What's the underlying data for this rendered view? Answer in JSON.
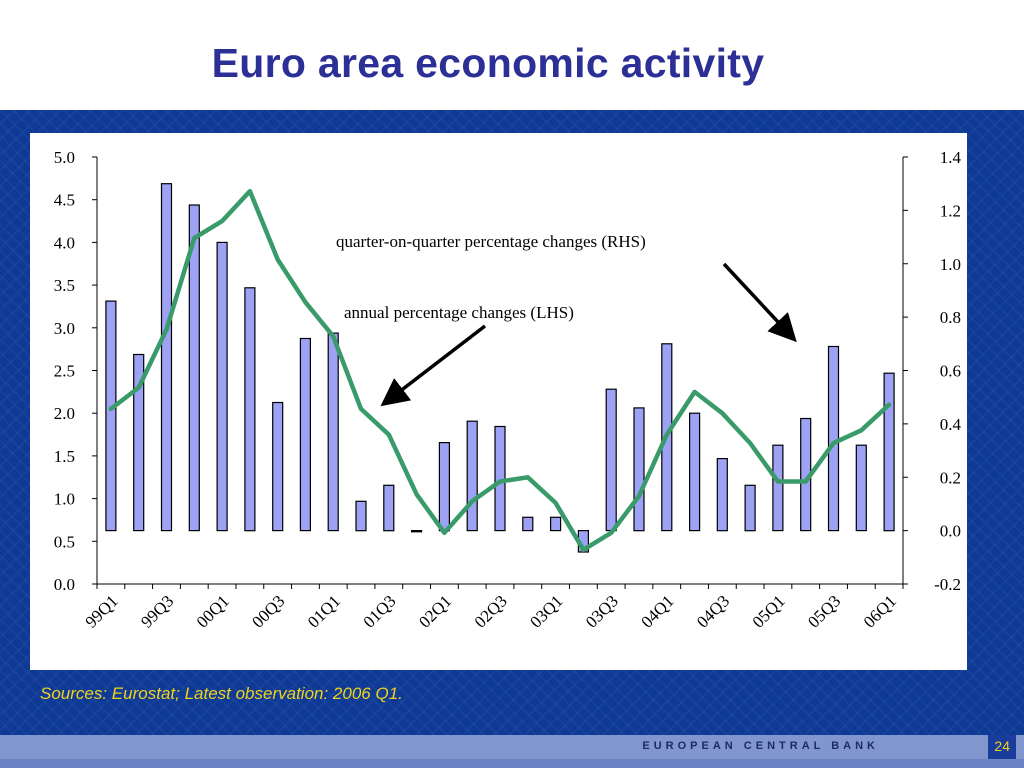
{
  "slide": {
    "title": "Euro area economic activity",
    "source_note": "Sources: Eurostat; Latest observation: 2006 Q1.",
    "footer_bank": "EUROPEAN CENTRAL BANK",
    "page_number": "24"
  },
  "colors": {
    "title": "#2b2f96",
    "band": "#0e3a96",
    "bar_fill": "#9ea2f4",
    "bar_stroke": "#000000",
    "line": "#3a9b6a",
    "source_note": "#f2d21a"
  },
  "chart_data": {
    "type": "bar+line",
    "categories": [
      "99Q1",
      "99Q2",
      "99Q3",
      "99Q4",
      "00Q1",
      "00Q2",
      "00Q3",
      "00Q4",
      "01Q1",
      "01Q2",
      "01Q3",
      "01Q4",
      "02Q1",
      "02Q2",
      "02Q3",
      "02Q4",
      "03Q1",
      "03Q2",
      "03Q3",
      "03Q4",
      "04Q1",
      "04Q2",
      "04Q3",
      "04Q4",
      "05Q1",
      "05Q2",
      "05Q3",
      "05Q4",
      "06Q1"
    ],
    "tick_labels": [
      "99Q1",
      "99Q3",
      "00Q1",
      "00Q3",
      "01Q1",
      "01Q3",
      "02Q1",
      "02Q3",
      "03Q1",
      "03Q3",
      "04Q1",
      "04Q3",
      "05Q1",
      "05Q3",
      "06Q1"
    ],
    "series": [
      {
        "name": "quarter-on-quarter percentage changes (RHS)",
        "type": "bar",
        "axis": "right",
        "values": [
          0.86,
          0.66,
          1.3,
          1.22,
          1.08,
          0.91,
          0.48,
          0.72,
          0.74,
          0.11,
          0.17,
          0.0,
          0.33,
          0.41,
          0.39,
          0.05,
          0.05,
          -0.08,
          0.53,
          0.46,
          0.7,
          0.44,
          0.27,
          0.17,
          0.32,
          0.42,
          0.69,
          0.32,
          0.59
        ]
      },
      {
        "name": "annual percentage changes (LHS)",
        "type": "line",
        "axis": "left",
        "values": [
          2.05,
          2.3,
          2.98,
          4.05,
          4.25,
          4.6,
          3.8,
          3.3,
          2.9,
          2.05,
          1.75,
          1.05,
          0.6,
          0.97,
          1.2,
          1.25,
          0.95,
          0.4,
          0.6,
          1.03,
          1.75,
          2.25,
          2.0,
          1.65,
          1.2,
          1.2,
          1.65,
          1.8,
          2.1
        ]
      }
    ],
    "y_left": {
      "ylim": [
        0.0,
        5.0
      ],
      "ticks": [
        "5.0",
        "4.5",
        "4.0",
        "3.5",
        "3.0",
        "2.5",
        "2.0",
        "1.5",
        "1.0",
        "0.5",
        "0.0"
      ]
    },
    "y_right": {
      "ylim": [
        -0.2,
        1.4
      ],
      "ticks": [
        "1.4",
        "1.2",
        "1.0",
        "0.8",
        "0.6",
        "0.4",
        "0.2",
        "0.0",
        "-0.2"
      ]
    },
    "annotations": [
      {
        "text": "quarter-on-quarter percentage changes (RHS)"
      },
      {
        "text": "annual percentage changes (LHS)"
      }
    ],
    "grid": false,
    "legend": "none"
  }
}
